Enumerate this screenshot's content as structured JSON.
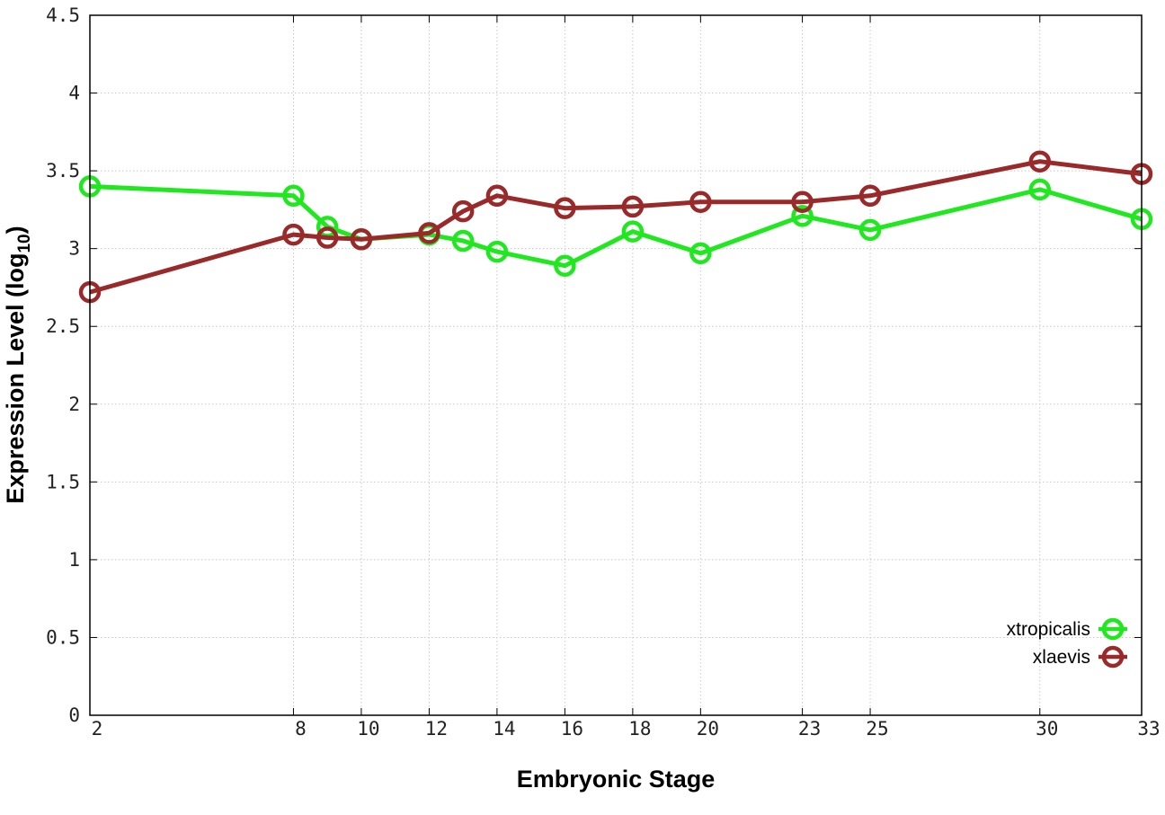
{
  "chart_data": {
    "type": "line",
    "title": "",
    "xlabel": "Embryonic Stage",
    "ylabel": {
      "main": "Expression Level (log",
      "subscript": "10",
      "close": ")"
    },
    "x_ticks": [
      2,
      8,
      10,
      12,
      14,
      16,
      18,
      20,
      23,
      25,
      30,
      33
    ],
    "y_ticks": [
      "0",
      "0.5",
      "1",
      "1.5",
      "2",
      "2.5",
      "3",
      "3.5",
      "4",
      "4.5"
    ],
    "xlim": [
      2,
      33
    ],
    "ylim": [
      0,
      4.5
    ],
    "grid": true,
    "legend_position": "bottom-right",
    "series": [
      {
        "name": "xtropicalis",
        "color": "#1fe81f",
        "x": [
          2,
          8,
          9,
          10,
          12,
          13,
          14,
          16,
          18,
          20,
          23,
          25,
          30,
          33
        ],
        "y": [
          3.4,
          3.34,
          3.14,
          3.06,
          3.09,
          3.05,
          2.98,
          2.89,
          3.11,
          2.97,
          3.21,
          3.12,
          3.38,
          3.19
        ]
      },
      {
        "name": "xlaevis",
        "color": "#9a2a2a",
        "x": [
          2,
          8,
          9,
          10,
          12,
          13,
          14,
          16,
          18,
          20,
          23,
          25,
          30,
          33
        ],
        "y": [
          2.72,
          3.09,
          3.07,
          3.06,
          3.1,
          3.24,
          3.34,
          3.26,
          3.27,
          3.3,
          3.3,
          3.34,
          3.56,
          3.48
        ]
      }
    ]
  }
}
